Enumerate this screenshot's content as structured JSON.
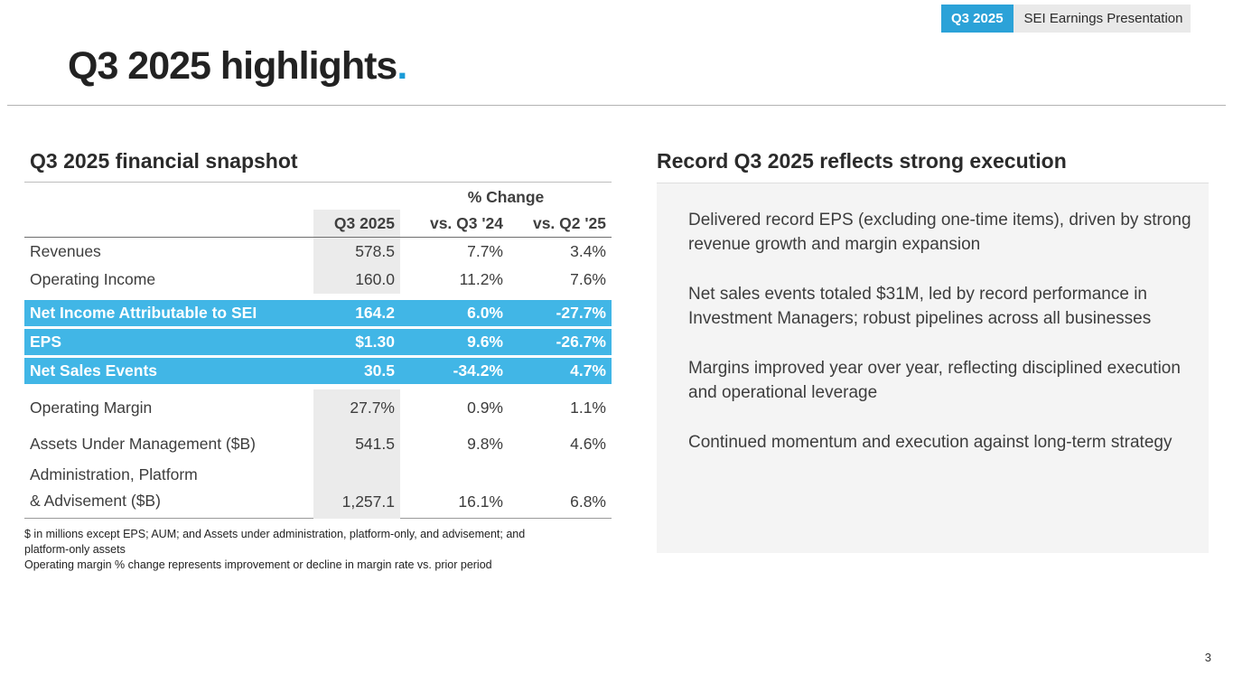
{
  "header_bar": {
    "badge": "Q3 2025",
    "title": "SEI Earnings Presentation"
  },
  "page_title": {
    "text": "Q3 2025 highlights",
    "accent": "."
  },
  "financial_snapshot": {
    "heading": "Q3 2025 financial snapshot",
    "col_group_header": "% Change",
    "columns": [
      "Q3 2025",
      "vs. Q3 '24",
      "vs. Q2 '25"
    ],
    "rows": [
      {
        "label": "Revenues",
        "q3": "578.5",
        "yoy": "7.7%",
        "qoq": "3.4%",
        "highlight": false
      },
      {
        "label": "Operating Income",
        "q3": "160.0",
        "yoy": "11.2%",
        "qoq": "7.6%",
        "highlight": false
      },
      {
        "label": "Net Income Attributable to SEI",
        "q3": "164.2",
        "yoy": "6.0%",
        "qoq": "-27.7%",
        "highlight": true
      },
      {
        "label": "EPS",
        "q3": "$1.30",
        "yoy": "9.6%",
        "qoq": "-26.7%",
        "highlight": true
      },
      {
        "label": "Net Sales Events",
        "q3": "30.5",
        "yoy": "-34.2%",
        "qoq": "4.7%",
        "highlight": true
      },
      {
        "label": "Operating Margin",
        "q3": "27.7%",
        "yoy": "0.9%",
        "qoq": "1.1%",
        "highlight": false
      },
      {
        "label": "Assets Under Management ($B)",
        "q3": "541.5",
        "yoy": "9.8%",
        "qoq": "4.6%",
        "highlight": false
      },
      {
        "label": "Administration, Platform\n& Advisement ($B)",
        "q3": "1,257.1",
        "yoy": "16.1%",
        "qoq": "6.8%",
        "highlight": false
      }
    ],
    "footnotes": [
      "$ in millions except EPS; AUM; and Assets under administration, platform-only, and advisement; and\nplatform-only assets",
      "Operating margin % change represents improvement or decline in margin rate vs. prior period"
    ]
  },
  "execution_panel": {
    "heading": "Record Q3 2025 reflects strong execution",
    "bullets": [
      "Delivered record EPS (excluding one-time items), driven by strong revenue growth and margin expansion",
      "Net sales events totaled $31M, led by record performance in Investment Managers; robust pipelines across all businesses",
      "Margins improved year over year, reflecting disciplined execution and operational leverage",
      "Continued momentum and execution against long-term strategy"
    ]
  },
  "page_number": "3",
  "colors": {
    "badge_cyan": "#2ba2d8",
    "highlight_cyan": "#41b6e6",
    "accent_dot": "#1b9cd8",
    "panel_gray": "#f4f4f4",
    "band_gray": "#ebebeb"
  }
}
